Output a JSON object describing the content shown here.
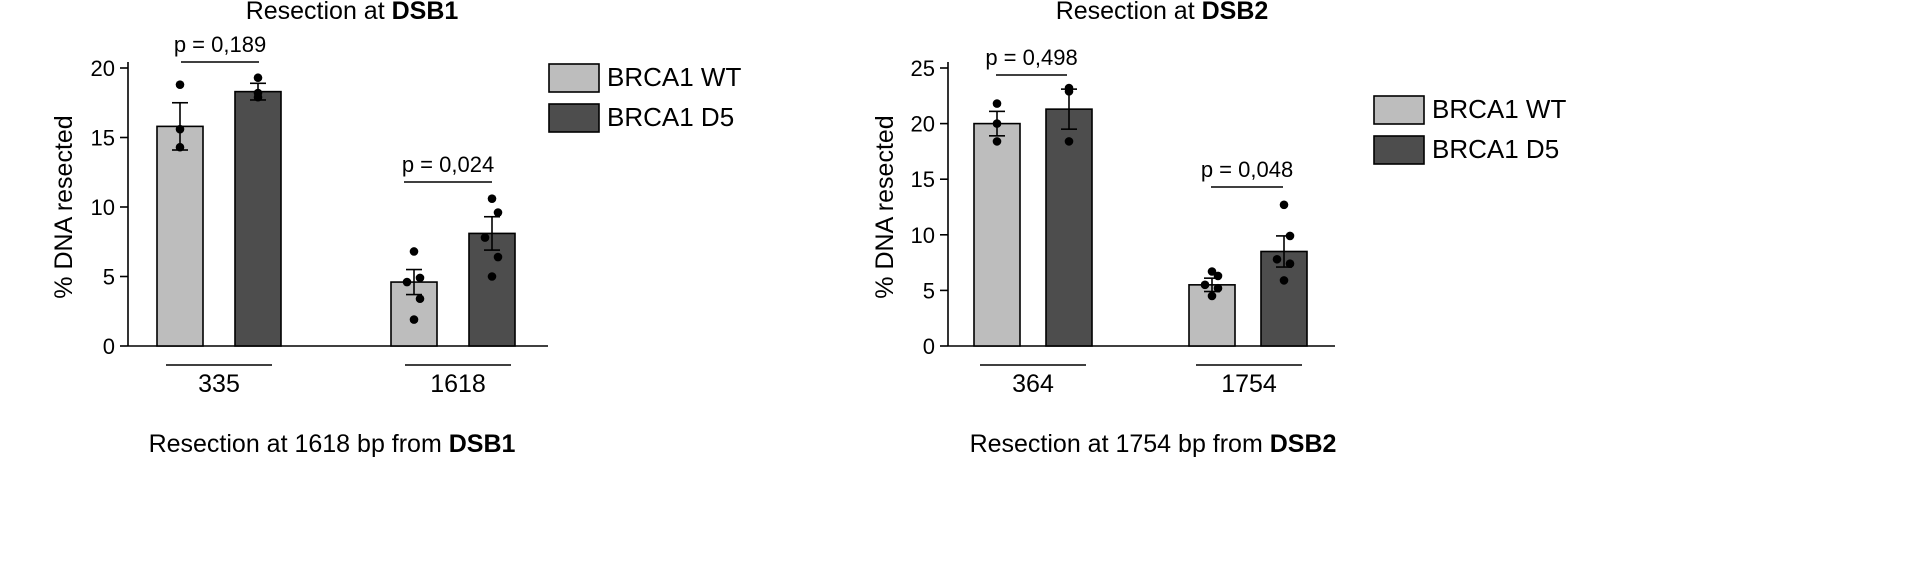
{
  "colors": {
    "wt": "#bdbdbd",
    "d5": "#4d4d4d",
    "axis": "#000000",
    "dot": "#000000"
  },
  "chart_data": [
    {
      "type": "bar",
      "title_prefix": "Resection at ",
      "title_bold": "DSB1",
      "subtitle_prefix": "Resection at 1618 bp from ",
      "subtitle_bold": "DSB1",
      "ylabel": "% DNA resected",
      "ylim": [
        0,
        20
      ],
      "yticks": [
        "0",
        "5",
        "10",
        "15",
        "20"
      ],
      "ytick_values": [
        0,
        5,
        10,
        15,
        20
      ],
      "categories": [
        "335",
        "1618"
      ],
      "legend": [
        "BRCA1 WT",
        "BRCA1 D5"
      ],
      "legend_position": "top-right",
      "series": [
        {
          "name": "BRCA1 WT",
          "values": [
            15.8,
            4.6
          ],
          "errors": [
            1.7,
            0.9
          ],
          "points": [
            [
              18.8,
              15.6,
              14.3
            ],
            [
              6.8,
              4.9,
              4.6,
              3.4,
              1.9
            ]
          ]
        },
        {
          "name": "BRCA1 D5",
          "values": [
            18.3,
            8.1
          ],
          "errors": [
            0.6,
            1.2
          ],
          "points": [
            [
              19.3,
              18.2,
              17.9
            ],
            [
              10.6,
              9.6,
              7.8,
              6.4,
              5.0
            ]
          ]
        }
      ],
      "pvalues": [
        "p = 0,189",
        "p = 0,024"
      ]
    },
    {
      "type": "bar",
      "title_prefix": "Resection at ",
      "title_bold": "DSB2",
      "subtitle_prefix": "Resection at 1754 bp from ",
      "subtitle_bold": "DSB2",
      "ylabel": "% DNA resected",
      "ylim": [
        0,
        25
      ],
      "yticks": [
        "0",
        "5",
        "10",
        "15",
        "20",
        "25"
      ],
      "ytick_values": [
        0,
        5,
        10,
        15,
        20,
        25
      ],
      "categories": [
        "364",
        "1754"
      ],
      "legend": [
        "BRCA1 WT",
        "BRCA1 D5"
      ],
      "legend_position": "top-right",
      "series": [
        {
          "name": "BRCA1 WT",
          "values": [
            20.0,
            5.5
          ],
          "errors": [
            1.1,
            0.6
          ],
          "points": [
            [
              21.8,
              20.0,
              18.4
            ],
            [
              6.7,
              6.3,
              5.5,
              5.2,
              4.5
            ]
          ]
        },
        {
          "name": "BRCA1 D5",
          "values": [
            21.3,
            8.5
          ],
          "errors": [
            1.8,
            1.4
          ],
          "points": [
            [
              23.2,
              22.9,
              18.4
            ],
            [
              12.7,
              9.9,
              7.8,
              7.4,
              5.9
            ]
          ]
        }
      ],
      "pvalues": [
        "p = 0,498",
        "p = 0,048"
      ]
    }
  ]
}
